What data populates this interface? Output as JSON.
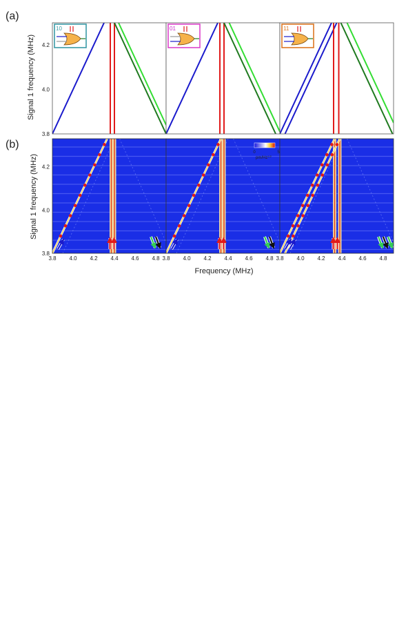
{
  "panel_labels": {
    "a": "(a)",
    "b": "(b)"
  },
  "ylabel": "Signal 1 frequency (MHz)",
  "xlabel": "Frequency (MHz)",
  "colorbar": {
    "min": "0",
    "max": "5",
    "unit": "pm/Hz",
    "unit_exp": "1/2"
  },
  "chart_data": [
    {
      "type": "line",
      "panel": "a",
      "xlim": [
        3.8,
        4.9
      ],
      "ylim": [
        3.8,
        4.3
      ],
      "yticks": [
        "3.8",
        "4.0",
        "4.2"
      ],
      "subplots": [
        {
          "code": "10",
          "code_color": "#3a9aa6",
          "frame_color": "#3a9aa6",
          "series": [
            {
              "color": "#1a1acc",
              "x": [
                3.8,
                4.3
              ],
              "y": [
                3.8,
                4.3
              ]
            },
            {
              "color": "#e11a1a",
              "x": [
                4.36,
                4.36
              ],
              "y": [
                3.8,
                4.3
              ]
            },
            {
              "color": "#e11a1a",
              "x": [
                4.4,
                4.4
              ],
              "y": [
                3.8,
                4.3
              ]
            },
            {
              "color": "#1f7a1f",
              "x": [
                4.4,
                4.9
              ],
              "y": [
                4.3,
                3.8
              ]
            },
            {
              "color": "#33dd33",
              "x": [
                4.44,
                4.9
              ],
              "y": [
                4.3,
                3.84
              ]
            }
          ]
        },
        {
          "code": "01",
          "code_color": "#cc33cc",
          "frame_color": "#dd44cc",
          "series": [
            {
              "color": "#1a1acc",
              "x": [
                3.8,
                4.3
              ],
              "y": [
                3.8,
                4.3
              ]
            },
            {
              "color": "#e11a1a",
              "x": [
                4.32,
                4.32
              ],
              "y": [
                3.8,
                4.3
              ]
            },
            {
              "color": "#e11a1a",
              "x": [
                4.36,
                4.36
              ],
              "y": [
                3.8,
                4.3
              ]
            },
            {
              "color": "#1f7a1f",
              "x": [
                4.36,
                4.9
              ],
              "y": [
                4.3,
                3.76
              ]
            },
            {
              "color": "#33dd33",
              "x": [
                4.41,
                4.9
              ],
              "y": [
                4.3,
                3.81
              ]
            }
          ]
        },
        {
          "code": "11",
          "code_color": "#dd7722",
          "frame_color": "#dd7722",
          "series": [
            {
              "color": "#1a1acc",
              "x": [
                3.8,
                4.3
              ],
              "y": [
                3.8,
                4.3
              ]
            },
            {
              "color": "#1a1acc",
              "x": [
                3.85,
                4.35
              ],
              "y": [
                3.8,
                4.3
              ]
            },
            {
              "color": "#e11a1a",
              "x": [
                4.32,
                4.32
              ],
              "y": [
                3.8,
                4.3
              ]
            },
            {
              "color": "#e11a1a",
              "x": [
                4.37,
                4.37
              ],
              "y": [
                3.8,
                4.3
              ]
            },
            {
              "color": "#1f7a1f",
              "x": [
                4.39,
                4.9
              ],
              "y": [
                4.3,
                3.79
              ]
            },
            {
              "color": "#33dd33",
              "x": [
                4.45,
                4.9
              ],
              "y": [
                4.3,
                3.85
              ]
            }
          ]
        }
      ]
    },
    {
      "type": "heatmap",
      "panel": "b",
      "xlim": [
        3.8,
        4.9
      ],
      "ylim": [
        3.8,
        4.33
      ],
      "xticks": [
        "3.8",
        "4.0",
        "4.2",
        "4.4",
        "4.6",
        "4.8"
      ],
      "yticks": [
        "3.8",
        "4.0",
        "4.2"
      ],
      "subplots": [
        {
          "diagonals": [
            0.0
          ],
          "reds": [
            4.37,
            4.4
          ],
          "arrows": [
            "blue",
            "red",
            "red",
            "green",
            "black"
          ]
        },
        {
          "diagonals": [
            0.0
          ],
          "reds": [
            4.33,
            4.36
          ],
          "arrows": [
            "blue",
            "red",
            "red",
            "green",
            "black"
          ]
        },
        {
          "diagonals": [
            0.0,
            0.05
          ],
          "reds": [
            4.33,
            4.38
          ],
          "arrows": [
            "blue",
            "blue",
            "red",
            "red",
            "green",
            "black",
            "green"
          ]
        }
      ]
    }
  ]
}
